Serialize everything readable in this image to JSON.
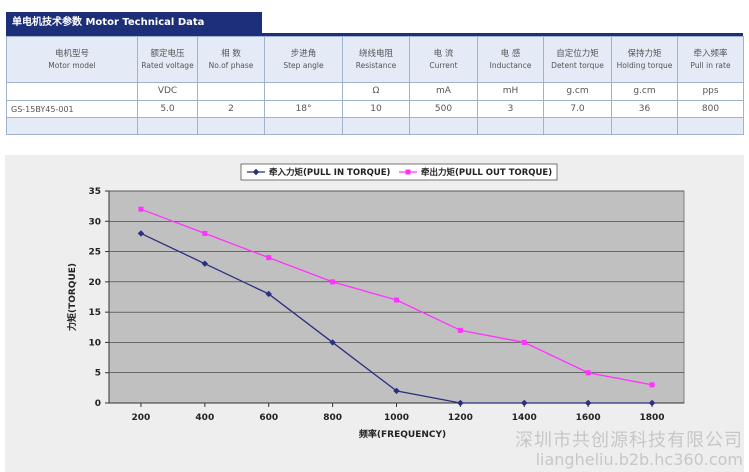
{
  "spec": {
    "title": "单电机技术参数 Motor Technical Data",
    "headers": [
      {
        "zh": "电机型号",
        "en": "Motor model"
      },
      {
        "zh": "额定电压",
        "en": "Rated voltage"
      },
      {
        "zh": "相 数",
        "en": "No.of phase"
      },
      {
        "zh": "步进角",
        "en": "Step angle"
      },
      {
        "zh": "绕线电阻",
        "en": "Resistance"
      },
      {
        "zh": "电 流",
        "en": "Current"
      },
      {
        "zh": "电 感",
        "en": "Inductance"
      },
      {
        "zh": "自定位力矩",
        "en": "Detent torque"
      },
      {
        "zh": "保持力矩",
        "en": "Holding torque"
      },
      {
        "zh": "牵入频率",
        "en": "Pull in rate"
      }
    ],
    "units": [
      "",
      "VDC",
      "",
      "",
      "Ω",
      "mA",
      "mH",
      "g.cm",
      "g.cm",
      "pps"
    ],
    "values": [
      "GS-15BY45-001",
      "5.0",
      "2",
      "18°",
      "10",
      "500",
      "3",
      "7.0",
      "36",
      "800"
    ]
  },
  "chart_data": {
    "type": "line",
    "x": [
      200,
      400,
      600,
      800,
      1000,
      1200,
      1400,
      1600,
      1800
    ],
    "series": [
      {
        "name": "牵入力矩(PULL IN TORQUE)",
        "color": "#2b2f80",
        "marker": "diamond",
        "values": [
          28,
          23,
          18,
          10,
          2,
          0,
          0,
          0,
          0
        ]
      },
      {
        "name": "牵出力矩(PULL OUT TORQUE)",
        "color": "#ff33ff",
        "marker": "square",
        "values": [
          32,
          28,
          24,
          20,
          17,
          12,
          10,
          5,
          3
        ]
      }
    ],
    "xlabel": "频率(FREQUENCY)",
    "ylabel": "力矩(TORQUE)",
    "ylim": [
      0,
      35
    ],
    "yticks": [
      0,
      5,
      10,
      15,
      20,
      25,
      30,
      35
    ],
    "plot_background": "#c0c0c0",
    "grid": true,
    "legend_position": "top-center"
  },
  "watermark": {
    "line1": "深圳市共创源科技有限公司",
    "line2": "liangheliu.b2b.hc360.com"
  }
}
